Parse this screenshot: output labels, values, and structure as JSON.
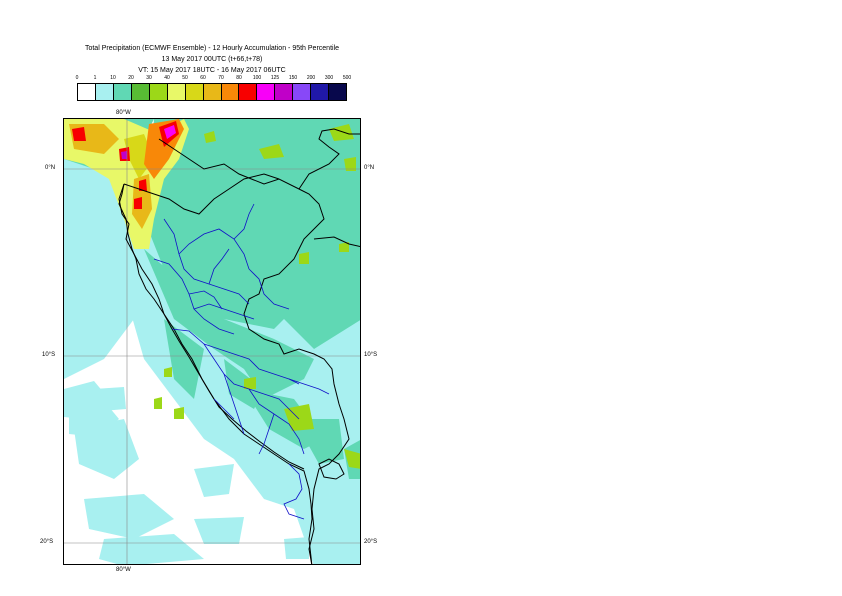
{
  "title": {
    "line1": "Total Precipitation (ECMWF Ensemble) - 12 Hourly Accumulation - 95th Percentile",
    "line2": "13 May 2017 00UTC (t+66,t+78)",
    "line3": "VT: 15 May 2017 18UTC - 16 May 2017 06UTC"
  },
  "legend": {
    "ticks": [
      "0",
      "1",
      "10",
      "20",
      "30",
      "40",
      "50",
      "60",
      "70",
      "80",
      "100",
      "125",
      "150",
      "200",
      "300",
      "500"
    ],
    "colors": [
      "#ffffff",
      "#a8f0f0",
      "#60d8b4",
      "#58bc34",
      "#9cd818",
      "#e8f868",
      "#d8d818",
      "#e8b818",
      "#f88808",
      "#f80000",
      "#f800f8",
      "#c000c8",
      "#8848f8",
      "#2018a8",
      "#08084c"
    ]
  },
  "map": {
    "top_lon_label": "80°W",
    "bottom_lon_label": "80°W",
    "lat_labels": [
      "0°N",
      "10°S",
      "20°S"
    ]
  }
}
